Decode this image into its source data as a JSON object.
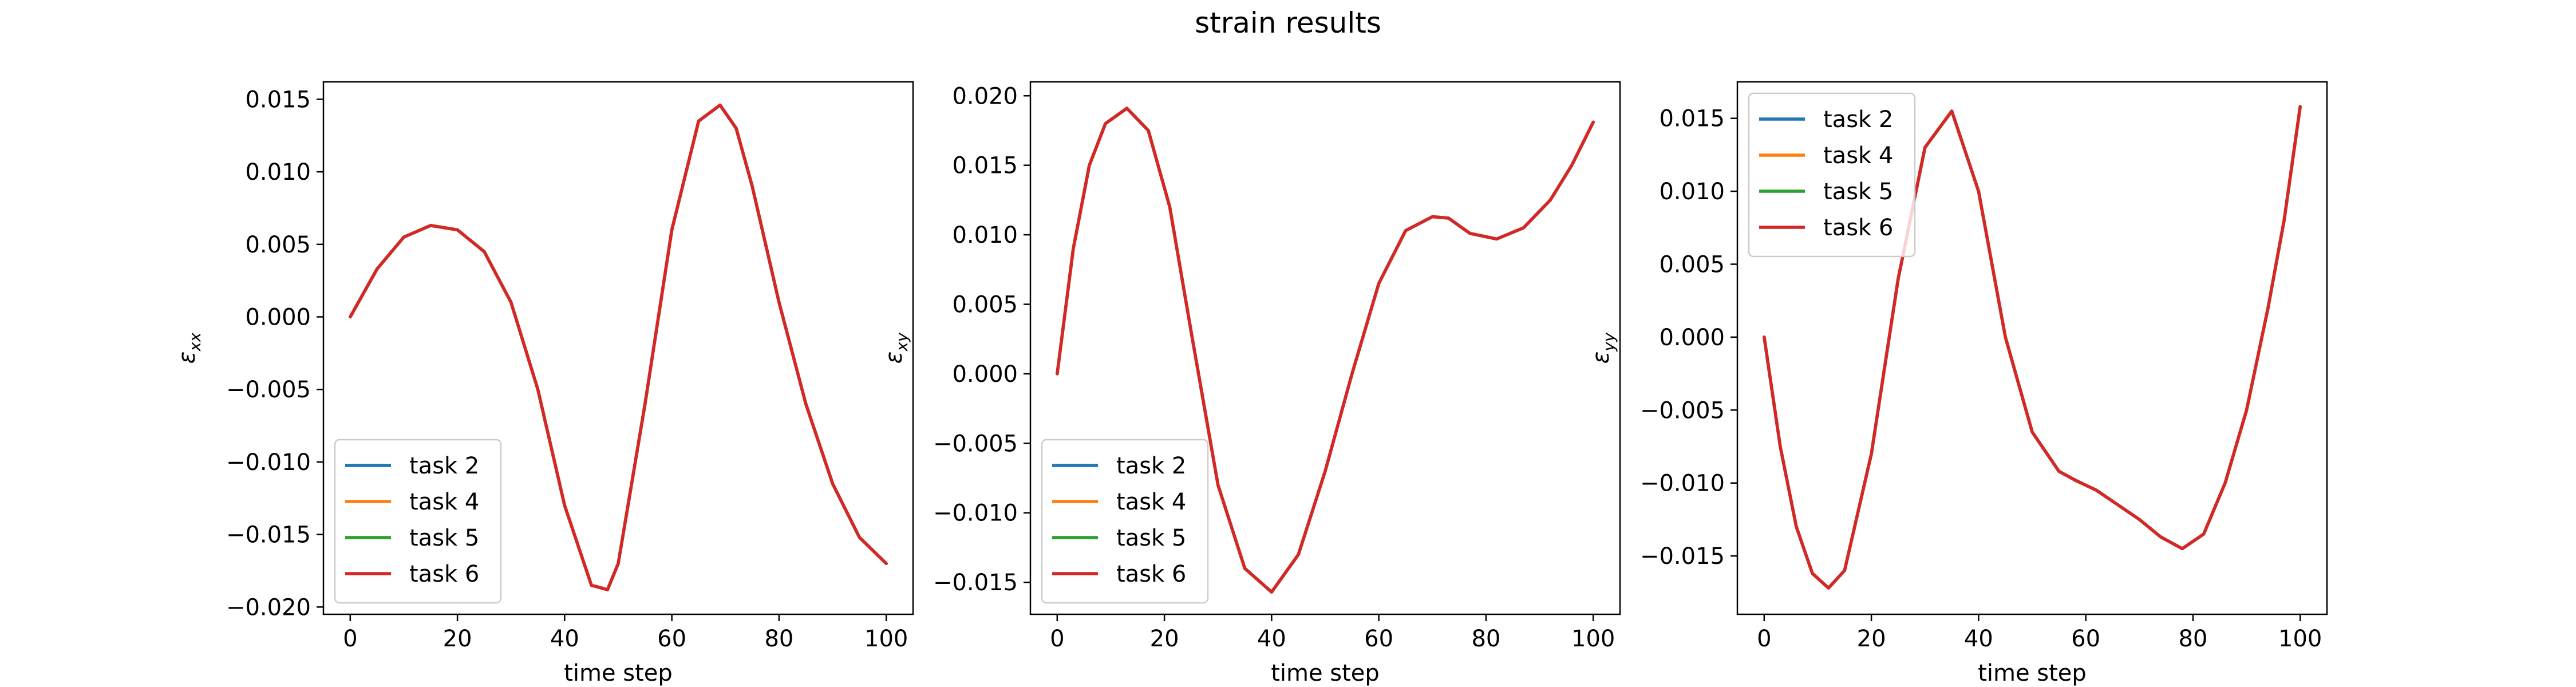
{
  "figure": {
    "title": "strain results"
  },
  "colors": {
    "task 2": "#1f77b4",
    "task 4": "#ff7f0e",
    "task 5": "#2ca02c",
    "task 6": "#d62728"
  },
  "chart_data": [
    {
      "type": "line",
      "title": "",
      "xlabel": "time step",
      "ylabel": "ε_xx",
      "xlim": [
        -5,
        105
      ],
      "ylim": [
        -0.0205,
        0.0162
      ],
      "xticks": [
        0,
        20,
        40,
        60,
        80,
        100
      ],
      "yticks": [
        -0.02,
        -0.015,
        -0.01,
        -0.005,
        0.0,
        0.005,
        0.01,
        0.015
      ],
      "ytick_labels": [
        "−0.020",
        "−0.015",
        "−0.010",
        "−0.005",
        "0.000",
        "0.005",
        "0.010",
        "0.015"
      ],
      "legend": {
        "position": "lower-left",
        "entries": [
          "task 2",
          "task 4",
          "task 5",
          "task 6"
        ]
      },
      "x": [
        0,
        5,
        10,
        15,
        20,
        25,
        30,
        35,
        40,
        45,
        48,
        50,
        55,
        60,
        65,
        69,
        72,
        75,
        80,
        85,
        90,
        95,
        100
      ],
      "series": [
        {
          "name": "task 2",
          "values": [
            0.0,
            0.0033,
            0.0055,
            0.0063,
            0.006,
            0.0045,
            0.001,
            -0.005,
            -0.013,
            -0.0185,
            -0.0188,
            -0.017,
            -0.006,
            0.006,
            0.0135,
            0.0146,
            0.013,
            0.009,
            0.001,
            -0.006,
            -0.0115,
            -0.0152,
            -0.017
          ]
        },
        {
          "name": "task 4",
          "values": [
            0.0,
            0.0033,
            0.0055,
            0.0063,
            0.006,
            0.0045,
            0.001,
            -0.005,
            -0.013,
            -0.0185,
            -0.0188,
            -0.017,
            -0.006,
            0.006,
            0.0135,
            0.0146,
            0.013,
            0.009,
            0.001,
            -0.006,
            -0.0115,
            -0.0152,
            -0.017
          ]
        },
        {
          "name": "task 5",
          "values": [
            0.0,
            0.0033,
            0.0055,
            0.0063,
            0.006,
            0.0045,
            0.001,
            -0.005,
            -0.013,
            -0.0185,
            -0.0188,
            -0.017,
            -0.006,
            0.006,
            0.0135,
            0.0146,
            0.013,
            0.009,
            0.001,
            -0.006,
            -0.0115,
            -0.0152,
            -0.017
          ]
        },
        {
          "name": "task 6",
          "values": [
            0.0,
            0.0033,
            0.0055,
            0.0063,
            0.006,
            0.0045,
            0.001,
            -0.005,
            -0.013,
            -0.0185,
            -0.0188,
            -0.017,
            -0.006,
            0.006,
            0.0135,
            0.0146,
            0.013,
            0.009,
            0.001,
            -0.006,
            -0.0115,
            -0.0152,
            -0.017
          ]
        }
      ]
    },
    {
      "type": "line",
      "title": "",
      "xlabel": "time step",
      "ylabel": "ε_xy",
      "xlim": [
        -5,
        105
      ],
      "ylim": [
        -0.0173,
        0.021
      ],
      "xticks": [
        0,
        20,
        40,
        60,
        80,
        100
      ],
      "yticks": [
        -0.015,
        -0.01,
        -0.005,
        0.0,
        0.005,
        0.01,
        0.015,
        0.02
      ],
      "ytick_labels": [
        "−0.015",
        "−0.010",
        "−0.005",
        "0.000",
        "0.005",
        "0.010",
        "0.015",
        "0.020"
      ],
      "legend": {
        "position": "lower-left",
        "entries": [
          "task 2",
          "task 4",
          "task 5",
          "task 6"
        ]
      },
      "x": [
        0,
        3,
        6,
        9,
        13,
        17,
        21,
        25,
        30,
        35,
        40,
        45,
        50,
        55,
        60,
        65,
        70,
        73,
        77,
        82,
        87,
        92,
        96,
        100
      ],
      "series": [
        {
          "name": "task 2",
          "values": [
            0.0,
            0.009,
            0.015,
            0.018,
            0.0191,
            0.0175,
            0.012,
            0.003,
            -0.008,
            -0.014,
            -0.0157,
            -0.013,
            -0.007,
            0.0,
            0.0065,
            0.0103,
            0.0113,
            0.0112,
            0.0101,
            0.0097,
            0.0105,
            0.0125,
            0.015,
            0.0181
          ]
        },
        {
          "name": "task 4",
          "values": [
            0.0,
            0.009,
            0.015,
            0.018,
            0.0191,
            0.0175,
            0.012,
            0.003,
            -0.008,
            -0.014,
            -0.0157,
            -0.013,
            -0.007,
            0.0,
            0.0065,
            0.0103,
            0.0113,
            0.0112,
            0.0101,
            0.0097,
            0.0105,
            0.0125,
            0.015,
            0.0181
          ]
        },
        {
          "name": "task 5",
          "values": [
            0.0,
            0.009,
            0.015,
            0.018,
            0.0191,
            0.0175,
            0.012,
            0.003,
            -0.008,
            -0.014,
            -0.0157,
            -0.013,
            -0.007,
            0.0,
            0.0065,
            0.0103,
            0.0113,
            0.0112,
            0.0101,
            0.0097,
            0.0105,
            0.0125,
            0.015,
            0.0181
          ]
        },
        {
          "name": "task 6",
          "values": [
            0.0,
            0.009,
            0.015,
            0.018,
            0.0191,
            0.0175,
            0.012,
            0.003,
            -0.008,
            -0.014,
            -0.0157,
            -0.013,
            -0.007,
            0.0,
            0.0065,
            0.0103,
            0.0113,
            0.0112,
            0.0101,
            0.0097,
            0.0105,
            0.0125,
            0.015,
            0.0181
          ]
        }
      ]
    },
    {
      "type": "line",
      "title": "",
      "xlabel": "time step",
      "ylabel": "ε_yy",
      "xlim": [
        -5,
        105
      ],
      "ylim": [
        -0.019,
        0.0175
      ],
      "xticks": [
        0,
        20,
        40,
        60,
        80,
        100
      ],
      "yticks": [
        -0.015,
        -0.01,
        -0.005,
        0.0,
        0.005,
        0.01,
        0.015
      ],
      "ytick_labels": [
        "−0.015",
        "−0.010",
        "−0.005",
        "0.000",
        "0.005",
        "0.010",
        "0.015"
      ],
      "legend": {
        "position": "upper-left",
        "entries": [
          "task 2",
          "task 4",
          "task 5",
          "task 6"
        ]
      },
      "x": [
        0,
        3,
        6,
        9,
        12,
        15,
        20,
        25,
        30,
        35,
        40,
        45,
        50,
        55,
        58,
        62,
        66,
        70,
        74,
        78,
        82,
        86,
        90,
        94,
        97,
        100
      ],
      "series": [
        {
          "name": "task 2",
          "values": [
            0.0,
            -0.0075,
            -0.013,
            -0.0162,
            -0.0172,
            -0.016,
            -0.008,
            0.004,
            0.013,
            0.0155,
            0.01,
            0.0,
            -0.0065,
            -0.0092,
            -0.0098,
            -0.0105,
            -0.0115,
            -0.0125,
            -0.0137,
            -0.0145,
            -0.0135,
            -0.01,
            -0.005,
            0.002,
            0.008,
            0.0158
          ]
        },
        {
          "name": "task 4",
          "values": [
            0.0,
            -0.0075,
            -0.013,
            -0.0162,
            -0.0172,
            -0.016,
            -0.008,
            0.004,
            0.013,
            0.0155,
            0.01,
            0.0,
            -0.0065,
            -0.0092,
            -0.0098,
            -0.0105,
            -0.0115,
            -0.0125,
            -0.0137,
            -0.0145,
            -0.0135,
            -0.01,
            -0.005,
            0.002,
            0.008,
            0.0158
          ]
        },
        {
          "name": "task 5",
          "values": [
            0.0,
            -0.0075,
            -0.013,
            -0.0162,
            -0.0172,
            -0.016,
            -0.008,
            0.004,
            0.013,
            0.0155,
            0.01,
            0.0,
            -0.0065,
            -0.0092,
            -0.0098,
            -0.0105,
            -0.0115,
            -0.0125,
            -0.0137,
            -0.0145,
            -0.0135,
            -0.01,
            -0.005,
            0.002,
            0.008,
            0.0158
          ]
        },
        {
          "name": "task 6",
          "values": [
            0.0,
            -0.0075,
            -0.013,
            -0.0162,
            -0.0172,
            -0.016,
            -0.008,
            0.004,
            0.013,
            0.0155,
            0.01,
            0.0,
            -0.0065,
            -0.0092,
            -0.0098,
            -0.0105,
            -0.0115,
            -0.0125,
            -0.0137,
            -0.0145,
            -0.0135,
            -0.01,
            -0.005,
            0.002,
            0.008,
            0.0158
          ]
        }
      ]
    }
  ]
}
